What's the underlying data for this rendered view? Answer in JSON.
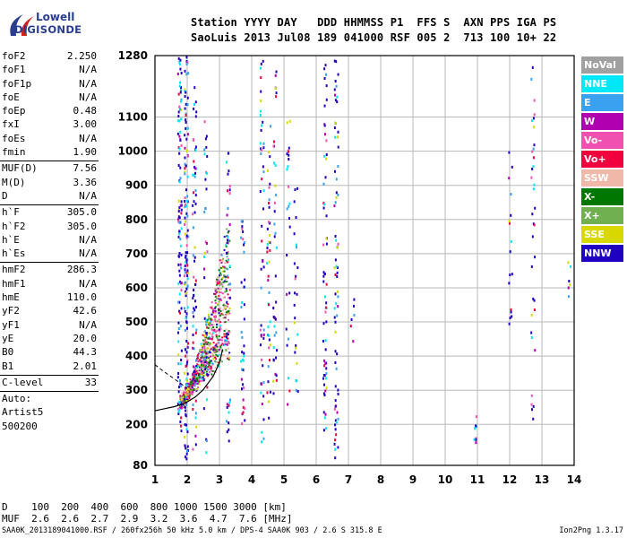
{
  "logo": {
    "top": "Lowell",
    "bottom": "DIGISONDE"
  },
  "header": {
    "labels": "Station YYYY DAY   DDD HHMMSS P1  FFS S  AXN PPS IGA PS",
    "values": "SaoLuis 2013 Jul08 189 041000 RSF 005 2  713 100 10+ 22"
  },
  "params": [
    {
      "name": "foF2",
      "value": "2.250"
    },
    {
      "name": "foF1",
      "value": "N/A"
    },
    {
      "name": "foF1p",
      "value": "N/A"
    },
    {
      "name": "foE",
      "value": "N/A"
    },
    {
      "name": "foEp",
      "value": "0.48"
    },
    {
      "name": "fxI",
      "value": "3.00"
    },
    {
      "name": "foEs",
      "value": "N/A"
    },
    {
      "name": "fmin",
      "value": "1.90"
    },
    {
      "sep": true
    },
    {
      "name": "MUF(D)",
      "value": "7.56"
    },
    {
      "name": "M(D)",
      "value": "3.36"
    },
    {
      "name": "D",
      "value": "N/A"
    },
    {
      "sep": true
    },
    {
      "name": "h`F",
      "value": "305.0"
    },
    {
      "name": "h`F2",
      "value": "305.0"
    },
    {
      "name": "h`E",
      "value": "N/A"
    },
    {
      "name": "h`Es",
      "value": "N/A"
    },
    {
      "sep": true
    },
    {
      "name": "hmF2",
      "value": "286.3"
    },
    {
      "name": "hmF1",
      "value": "N/A"
    },
    {
      "name": "hmE",
      "value": "110.0"
    },
    {
      "name": "yF2",
      "value": "42.6"
    },
    {
      "name": "yF1",
      "value": "N/A"
    },
    {
      "name": "yE",
      "value": "20.0"
    },
    {
      "name": "B0",
      "value": "44.3"
    },
    {
      "name": "B1",
      "value": "2.01"
    },
    {
      "sep": true
    },
    {
      "name": "C-level",
      "value": "33"
    },
    {
      "sep": true
    },
    {
      "text": "Auto:"
    },
    {
      "text": "Artist5"
    },
    {
      "text": "500200"
    }
  ],
  "legend": [
    {
      "label": "NoVal",
      "color": "#a0a0a0"
    },
    {
      "label": "NNE",
      "color": "#00e8f8"
    },
    {
      "label": "E",
      "color": "#3aa0f0"
    },
    {
      "label": "W",
      "color": "#b000b0"
    },
    {
      "label": "Vo-",
      "color": "#f050b0"
    },
    {
      "label": "Vo+",
      "color": "#f0003c"
    },
    {
      "label": "SSW",
      "color": "#f0b8a8"
    },
    {
      "label": "X-",
      "color": "#007800"
    },
    {
      "label": "X+",
      "color": "#70b050"
    },
    {
      "label": "SSE",
      "color": "#d8d800"
    },
    {
      "label": "NNW",
      "color": "#2000c0"
    }
  ],
  "bottom": {
    "dist": "D    100  200  400  600  800 1000 1500 3000 [km]",
    "muf": "MUF  2.6  2.6  2.7  2.9  3.2  3.6  4.7  7.6 [MHz]"
  },
  "footer": {
    "left": "SAA0K_2013189041000.RSF / 260fx256h 50 kHz 5.0 km / DPS-4 SAA0K 903 / 2.6 S 315.8 E",
    "right": "Ion2Png 1.3.17"
  },
  "chart_data": {
    "type": "scatter",
    "x_ticks": [
      1,
      2,
      3,
      4,
      5,
      6,
      7,
      8,
      9,
      10,
      11,
      12,
      13,
      14
    ],
    "y_ticks": [
      80,
      200,
      300,
      400,
      500,
      600,
      700,
      800,
      900,
      1000,
      1100,
      1280
    ],
    "xlim": [
      1,
      14
    ],
    "ylim": [
      80,
      1280
    ],
    "grid": true,
    "legend_position": "right",
    "trace": [
      [
        1.0,
        240
      ],
      [
        1.3,
        246
      ],
      [
        1.6,
        252
      ],
      [
        1.8,
        258
      ],
      [
        2.0,
        266
      ],
      [
        2.25,
        280
      ],
      [
        2.5,
        302
      ],
      [
        2.8,
        340
      ],
      [
        3.0,
        380
      ],
      [
        3.1,
        420
      ]
    ],
    "oblique_trace": [
      [
        1.0,
        375
      ],
      [
        1.2,
        360
      ],
      [
        1.5,
        340
      ],
      [
        1.8,
        320
      ],
      [
        2.0,
        305
      ]
    ]
  }
}
